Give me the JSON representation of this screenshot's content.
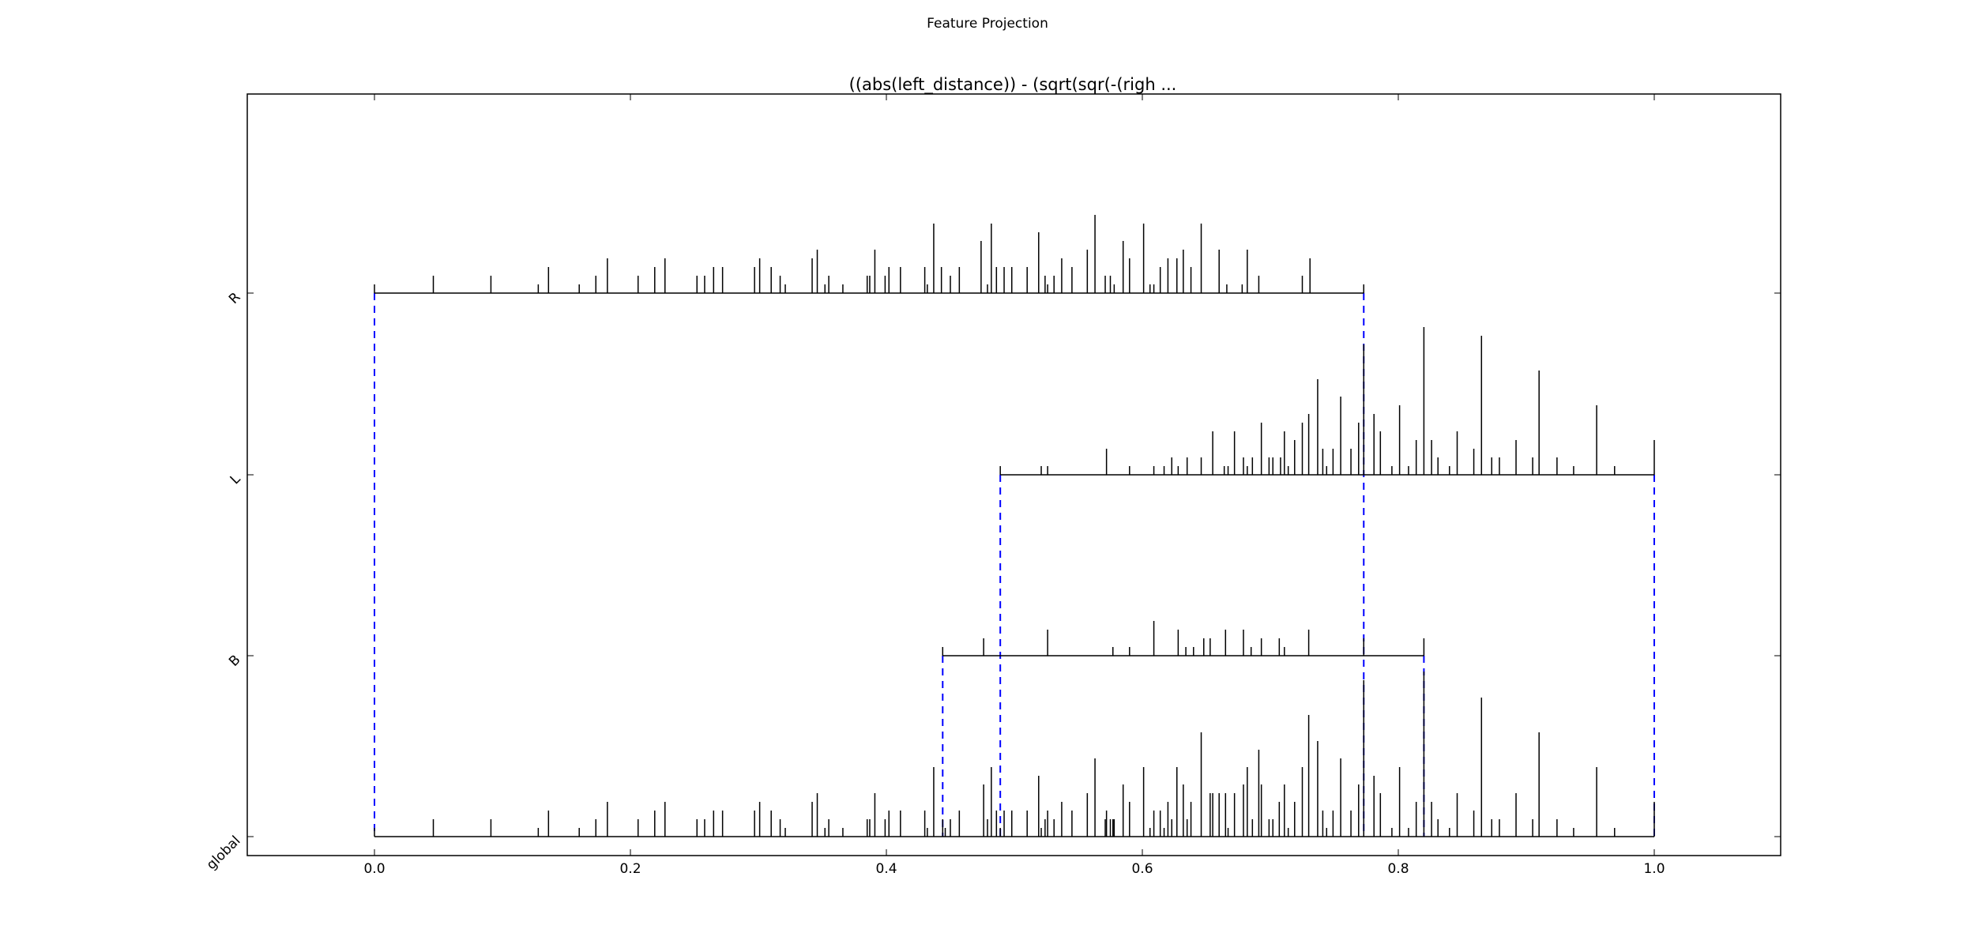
{
  "figure": {
    "title": "Feature Projection"
  },
  "chart_data": {
    "type": "spike-projection",
    "title": "((abs(left_distance)) - (sqrt(sqr(-(righ ...",
    "xlabel": "",
    "ylabel": "",
    "xlim": [
      -0.1,
      1.1
    ],
    "xticks": [
      "0.0",
      "0.2",
      "0.4",
      "0.6",
      "0.8",
      "1.0"
    ],
    "xtick_values": [
      0.0,
      0.2,
      0.4,
      0.6,
      0.8,
      1.0
    ],
    "grid": false,
    "categories": [
      "global",
      "B",
      "L",
      "R"
    ],
    "divider_color": "#0000ff",
    "series": [
      {
        "name": "R",
        "range": [
          0.0,
          0.773
        ],
        "spikes": [
          [
            0.0,
            1
          ],
          [
            0.046,
            2
          ],
          [
            0.091,
            2
          ],
          [
            0.128,
            1
          ],
          [
            0.136,
            3
          ],
          [
            0.16,
            1
          ],
          [
            0.173,
            2
          ],
          [
            0.182,
            4
          ],
          [
            0.206,
            2
          ],
          [
            0.219,
            3
          ],
          [
            0.227,
            4
          ],
          [
            0.252,
            2
          ],
          [
            0.258,
            2
          ],
          [
            0.265,
            3
          ],
          [
            0.272,
            3
          ],
          [
            0.297,
            3
          ],
          [
            0.301,
            4
          ],
          [
            0.31,
            3
          ],
          [
            0.317,
            2
          ],
          [
            0.321,
            1
          ],
          [
            0.342,
            4
          ],
          [
            0.346,
            5
          ],
          [
            0.352,
            1
          ],
          [
            0.355,
            2
          ],
          [
            0.366,
            1
          ],
          [
            0.385,
            2
          ],
          [
            0.387,
            2
          ],
          [
            0.391,
            5
          ],
          [
            0.399,
            2
          ],
          [
            0.402,
            3
          ],
          [
            0.411,
            3
          ],
          [
            0.43,
            3
          ],
          [
            0.432,
            1
          ],
          [
            0.437,
            8
          ],
          [
            0.443,
            3
          ],
          [
            0.45,
            2
          ],
          [
            0.457,
            3
          ],
          [
            0.474,
            6
          ],
          [
            0.479,
            1
          ],
          [
            0.482,
            8
          ],
          [
            0.486,
            3
          ],
          [
            0.492,
            3
          ],
          [
            0.498,
            3
          ],
          [
            0.51,
            3
          ],
          [
            0.519,
            7
          ],
          [
            0.524,
            2
          ],
          [
            0.526,
            1
          ],
          [
            0.531,
            2
          ],
          [
            0.537,
            4
          ],
          [
            0.545,
            3
          ],
          [
            0.557,
            5
          ],
          [
            0.563,
            9
          ],
          [
            0.571,
            2
          ],
          [
            0.575,
            2
          ],
          [
            0.578,
            1
          ],
          [
            0.585,
            6
          ],
          [
            0.59,
            4
          ],
          [
            0.601,
            8
          ],
          [
            0.606,
            1
          ],
          [
            0.609,
            1
          ],
          [
            0.614,
            3
          ],
          [
            0.62,
            4
          ],
          [
            0.627,
            4
          ],
          [
            0.632,
            5
          ],
          [
            0.638,
            3
          ],
          [
            0.646,
            8
          ],
          [
            0.66,
            5
          ],
          [
            0.666,
            1
          ],
          [
            0.678,
            1
          ],
          [
            0.682,
            5
          ],
          [
            0.691,
            2
          ],
          [
            0.725,
            2
          ],
          [
            0.731,
            4
          ],
          [
            0.773,
            1
          ]
        ]
      },
      {
        "name": "L",
        "range": [
          0.489,
          1.0
        ],
        "spikes": [
          [
            0.489,
            1
          ],
          [
            0.521,
            1
          ],
          [
            0.526,
            1
          ],
          [
            0.572,
            3
          ],
          [
            0.59,
            1
          ],
          [
            0.609,
            1
          ],
          [
            0.617,
            1
          ],
          [
            0.623,
            2
          ],
          [
            0.628,
            1
          ],
          [
            0.635,
            2
          ],
          [
            0.646,
            2
          ],
          [
            0.655,
            5
          ],
          [
            0.664,
            1
          ],
          [
            0.667,
            1
          ],
          [
            0.672,
            5
          ],
          [
            0.679,
            2
          ],
          [
            0.682,
            1
          ],
          [
            0.686,
            2
          ],
          [
            0.693,
            6
          ],
          [
            0.699,
            2
          ],
          [
            0.702,
            2
          ],
          [
            0.708,
            2
          ],
          [
            0.711,
            5
          ],
          [
            0.714,
            1
          ],
          [
            0.719,
            4
          ],
          [
            0.725,
            6
          ],
          [
            0.73,
            7
          ],
          [
            0.737,
            11
          ],
          [
            0.741,
            3
          ],
          [
            0.744,
            1
          ],
          [
            0.749,
            3
          ],
          [
            0.755,
            9
          ],
          [
            0.763,
            3
          ],
          [
            0.769,
            6
          ],
          [
            0.773,
            15
          ],
          [
            0.781,
            7
          ],
          [
            0.786,
            5
          ],
          [
            0.795,
            1
          ],
          [
            0.801,
            8
          ],
          [
            0.808,
            1
          ],
          [
            0.814,
            4
          ],
          [
            0.82,
            17
          ],
          [
            0.826,
            4
          ],
          [
            0.831,
            2
          ],
          [
            0.84,
            1
          ],
          [
            0.846,
            5
          ],
          [
            0.859,
            3
          ],
          [
            0.865,
            16
          ],
          [
            0.873,
            2
          ],
          [
            0.879,
            2
          ],
          [
            0.892,
            4
          ],
          [
            0.905,
            2
          ],
          [
            0.91,
            12
          ],
          [
            0.924,
            2
          ],
          [
            0.937,
            1
          ],
          [
            0.955,
            8
          ],
          [
            0.969,
            1
          ],
          [
            1.0,
            4
          ]
        ]
      },
      {
        "name": "B",
        "range": [
          0.444,
          0.82
        ],
        "spikes": [
          [
            0.444,
            1
          ],
          [
            0.476,
            2
          ],
          [
            0.526,
            3
          ],
          [
            0.577,
            1
          ],
          [
            0.59,
            1
          ],
          [
            0.609,
            4
          ],
          [
            0.628,
            3
          ],
          [
            0.634,
            1
          ],
          [
            0.64,
            1
          ],
          [
            0.648,
            2
          ],
          [
            0.653,
            2
          ],
          [
            0.665,
            3
          ],
          [
            0.679,
            3
          ],
          [
            0.685,
            1
          ],
          [
            0.693,
            2
          ],
          [
            0.707,
            2
          ],
          [
            0.711,
            1
          ],
          [
            0.73,
            3
          ],
          [
            0.773,
            2
          ],
          [
            0.82,
            2
          ]
        ]
      },
      {
        "name": "global",
        "range": [
          0.0,
          1.0
        ],
        "spikes": [
          [
            0.0,
            1
          ],
          [
            0.046,
            2
          ],
          [
            0.091,
            2
          ],
          [
            0.128,
            1
          ],
          [
            0.136,
            3
          ],
          [
            0.16,
            1
          ],
          [
            0.173,
            2
          ],
          [
            0.182,
            4
          ],
          [
            0.206,
            2
          ],
          [
            0.219,
            3
          ],
          [
            0.227,
            4
          ],
          [
            0.252,
            2
          ],
          [
            0.258,
            2
          ],
          [
            0.265,
            3
          ],
          [
            0.272,
            3
          ],
          [
            0.297,
            3
          ],
          [
            0.301,
            4
          ],
          [
            0.31,
            3
          ],
          [
            0.317,
            2
          ],
          [
            0.321,
            1
          ],
          [
            0.342,
            4
          ],
          [
            0.346,
            5
          ],
          [
            0.352,
            1
          ],
          [
            0.355,
            2
          ],
          [
            0.366,
            1
          ],
          [
            0.385,
            2
          ],
          [
            0.387,
            2
          ],
          [
            0.391,
            5
          ],
          [
            0.399,
            2
          ],
          [
            0.402,
            3
          ],
          [
            0.411,
            3
          ],
          [
            0.43,
            3
          ],
          [
            0.432,
            1
          ],
          [
            0.437,
            8
          ],
          [
            0.444,
            2
          ],
          [
            0.446,
            1
          ],
          [
            0.45,
            2
          ],
          [
            0.457,
            3
          ],
          [
            0.476,
            6
          ],
          [
            0.479,
            2
          ],
          [
            0.482,
            8
          ],
          [
            0.486,
            3
          ],
          [
            0.489,
            1
          ],
          [
            0.492,
            3
          ],
          [
            0.498,
            3
          ],
          [
            0.51,
            3
          ],
          [
            0.519,
            7
          ],
          [
            0.521,
            1
          ],
          [
            0.524,
            2
          ],
          [
            0.526,
            3
          ],
          [
            0.531,
            2
          ],
          [
            0.537,
            4
          ],
          [
            0.545,
            3
          ],
          [
            0.557,
            5
          ],
          [
            0.563,
            9
          ],
          [
            0.571,
            2
          ],
          [
            0.572,
            3
          ],
          [
            0.575,
            2
          ],
          [
            0.577,
            2
          ],
          [
            0.578,
            2
          ],
          [
            0.585,
            6
          ],
          [
            0.59,
            4
          ],
          [
            0.601,
            8
          ],
          [
            0.606,
            1
          ],
          [
            0.609,
            3
          ],
          [
            0.614,
            3
          ],
          [
            0.617,
            1
          ],
          [
            0.62,
            4
          ],
          [
            0.623,
            2
          ],
          [
            0.627,
            8
          ],
          [
            0.632,
            6
          ],
          [
            0.635,
            2
          ],
          [
            0.638,
            4
          ],
          [
            0.646,
            12
          ],
          [
            0.653,
            5
          ],
          [
            0.655,
            5
          ],
          [
            0.66,
            5
          ],
          [
            0.665,
            5
          ],
          [
            0.667,
            1
          ],
          [
            0.672,
            5
          ],
          [
            0.679,
            6
          ],
          [
            0.682,
            8
          ],
          [
            0.686,
            2
          ],
          [
            0.691,
            10
          ],
          [
            0.693,
            6
          ],
          [
            0.699,
            2
          ],
          [
            0.702,
            2
          ],
          [
            0.707,
            4
          ],
          [
            0.711,
            6
          ],
          [
            0.714,
            1
          ],
          [
            0.719,
            4
          ],
          [
            0.725,
            8
          ],
          [
            0.73,
            14
          ],
          [
            0.737,
            11
          ],
          [
            0.741,
            3
          ],
          [
            0.744,
            1
          ],
          [
            0.749,
            3
          ],
          [
            0.755,
            9
          ],
          [
            0.763,
            3
          ],
          [
            0.769,
            6
          ],
          [
            0.773,
            18
          ],
          [
            0.781,
            7
          ],
          [
            0.786,
            5
          ],
          [
            0.795,
            1
          ],
          [
            0.801,
            8
          ],
          [
            0.808,
            1
          ],
          [
            0.814,
            4
          ],
          [
            0.82,
            19
          ],
          [
            0.826,
            4
          ],
          [
            0.831,
            2
          ],
          [
            0.84,
            1
          ],
          [
            0.846,
            5
          ],
          [
            0.859,
            3
          ],
          [
            0.865,
            16
          ],
          [
            0.873,
            2
          ],
          [
            0.879,
            2
          ],
          [
            0.892,
            5
          ],
          [
            0.905,
            2
          ],
          [
            0.91,
            12
          ],
          [
            0.924,
            2
          ],
          [
            0.937,
            1
          ],
          [
            0.955,
            8
          ],
          [
            0.969,
            1
          ],
          [
            1.0,
            4
          ]
        ]
      }
    ],
    "dividers": [
      0.0,
      0.444,
      0.489,
      0.773,
      0.82,
      1.0
    ]
  }
}
